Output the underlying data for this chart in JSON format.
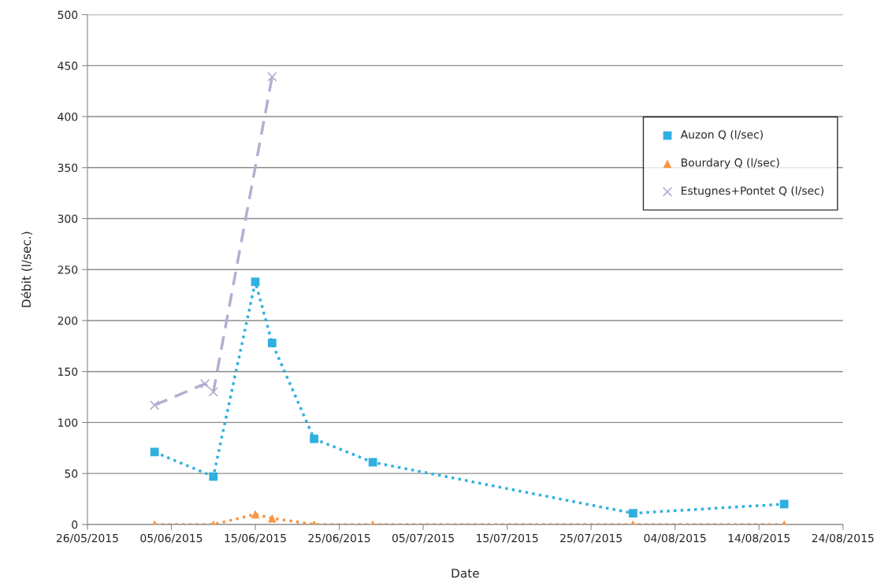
{
  "chart_data": {
    "type": "line",
    "xlabel": "Date",
    "ylabel": "Débit (l/sec.)",
    "xlim": [
      "2015-05-26",
      "2015-08-24"
    ],
    "xticks": [
      {
        "value": "2015-05-26",
        "label": "26/05/2015"
      },
      {
        "value": "2015-06-05",
        "label": "05/06/2015"
      },
      {
        "value": "2015-06-15",
        "label": "15/06/2015"
      },
      {
        "value": "2015-06-25",
        "label": "25/06/2015"
      },
      {
        "value": "2015-07-05",
        "label": "05/07/2015"
      },
      {
        "value": "2015-07-15",
        "label": "15/07/2015"
      },
      {
        "value": "2015-07-25",
        "label": "25/07/2015"
      },
      {
        "value": "2015-08-04",
        "label": "04/08/2015"
      },
      {
        "value": "2015-08-14",
        "label": "14/08/2015"
      },
      {
        "value": "2015-08-24",
        "label": "24/08/2015"
      }
    ],
    "ylim": [
      0,
      500
    ],
    "yticks": [
      0,
      50,
      100,
      150,
      200,
      250,
      300,
      350,
      400,
      450,
      500
    ],
    "grid": "y",
    "legend": "top right",
    "series": [
      {
        "name": "Auzon Q (l/sec)",
        "color": "#2fb0e0",
        "marker": "square",
        "line_style": "dotted",
        "x": [
          "2015-06-03",
          "2015-06-10",
          "2015-06-15",
          "2015-06-17",
          "2015-06-22",
          "2015-06-29",
          "2015-07-30",
          "2015-08-17"
        ],
        "values": [
          71,
          47,
          238,
          178,
          84,
          61,
          11,
          20
        ]
      },
      {
        "name": "Bourdary Q (l/sec)",
        "color": "#f79646",
        "marker": "triangle",
        "line_style": "dotted",
        "x": [
          "2015-06-03",
          "2015-06-10",
          "2015-06-15",
          "2015-06-17",
          "2015-06-22",
          "2015-06-29",
          "2015-07-30",
          "2015-08-17"
        ],
        "values": [
          0,
          0,
          10,
          6,
          0,
          0,
          0,
          0
        ]
      },
      {
        "name": "Estugnes+Pontet Q (l/sec)",
        "color": "#b8acd2",
        "marker": "cross",
        "line_style": "dashed",
        "x": [
          "2015-06-03",
          "2015-06-09",
          "2015-06-10",
          "2015-06-17"
        ],
        "values": [
          117,
          138,
          130,
          439
        ]
      }
    ]
  }
}
